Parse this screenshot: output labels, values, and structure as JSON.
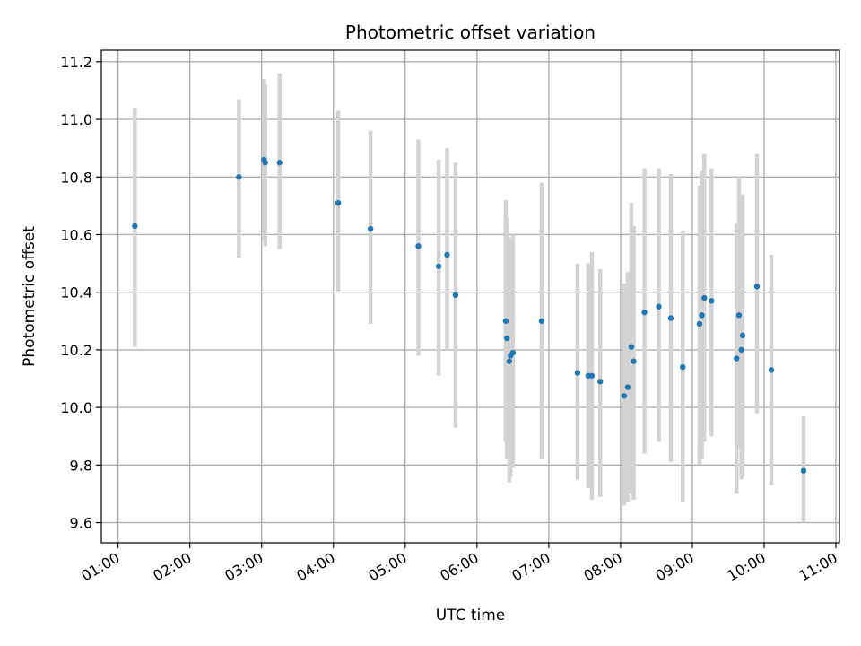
{
  "chart_data": {
    "type": "scatter",
    "title": "Photometric offset variation",
    "xlabel": "UTC time",
    "ylabel": "Photometric offset",
    "grid": true,
    "xlim": [
      "00:46",
      "11:03"
    ],
    "ylim": [
      9.53,
      11.24
    ],
    "x_ticks": [
      "01:00",
      "02:00",
      "03:00",
      "04:00",
      "05:00",
      "06:00",
      "07:00",
      "08:00",
      "09:00",
      "10:00",
      "11:00"
    ],
    "y_ticks": [
      9.6,
      9.8,
      10.0,
      10.2,
      10.4,
      10.6,
      10.8,
      11.0,
      11.2
    ],
    "y_tick_labels": [
      "9.6",
      "9.8",
      "10.0",
      "10.2",
      "10.4",
      "10.6",
      "10.8",
      "11.0",
      "11.2"
    ],
    "colors": {
      "point": "#1f77b4",
      "errorbar": "#d3d3d3",
      "grid": "#b0b0b0"
    },
    "points": [
      {
        "x": "01:14",
        "y": 10.63,
        "lo": 10.21,
        "hi": 11.04
      },
      {
        "x": "02:41",
        "y": 10.8,
        "lo": 10.52,
        "hi": 11.07
      },
      {
        "x": "03:02",
        "y": 10.86,
        "lo": 10.58,
        "hi": 11.14
      },
      {
        "x": "03:03",
        "y": 10.85,
        "lo": 10.56,
        "hi": 11.12
      },
      {
        "x": "03:15",
        "y": 10.85,
        "lo": 10.55,
        "hi": 11.16
      },
      {
        "x": "04:04",
        "y": 10.71,
        "lo": 10.4,
        "hi": 11.03
      },
      {
        "x": "04:31",
        "y": 10.62,
        "lo": 10.29,
        "hi": 10.96
      },
      {
        "x": "05:11",
        "y": 10.56,
        "lo": 10.18,
        "hi": 10.93
      },
      {
        "x": "05:28",
        "y": 10.49,
        "lo": 10.11,
        "hi": 10.86
      },
      {
        "x": "05:35",
        "y": 10.53,
        "lo": 10.2,
        "hi": 10.9
      },
      {
        "x": "05:42",
        "y": 10.39,
        "lo": 9.93,
        "hi": 10.85
      },
      {
        "x": "06:24",
        "y": 10.3,
        "lo": 9.88,
        "hi": 10.72
      },
      {
        "x": "06:25",
        "y": 10.24,
        "lo": 9.82,
        "hi": 10.66
      },
      {
        "x": "06:27",
        "y": 10.16,
        "lo": 9.74,
        "hi": 10.58
      },
      {
        "x": "06:28",
        "y": 10.18,
        "lo": 9.76,
        "hi": 10.59
      },
      {
        "x": "06:30",
        "y": 10.19,
        "lo": 9.79,
        "hi": 10.6
      },
      {
        "x": "06:54",
        "y": 10.3,
        "lo": 9.82,
        "hi": 10.78
      },
      {
        "x": "07:24",
        "y": 10.12,
        "lo": 9.75,
        "hi": 10.5
      },
      {
        "x": "07:33",
        "y": 10.11,
        "lo": 9.72,
        "hi": 10.5
      },
      {
        "x": "07:36",
        "y": 10.11,
        "lo": 9.68,
        "hi": 10.54
      },
      {
        "x": "07:43",
        "y": 10.09,
        "lo": 9.69,
        "hi": 10.48
      },
      {
        "x": "08:03",
        "y": 10.04,
        "lo": 9.66,
        "hi": 10.43
      },
      {
        "x": "08:06",
        "y": 10.07,
        "lo": 9.67,
        "hi": 10.47
      },
      {
        "x": "08:09",
        "y": 10.21,
        "lo": 9.7,
        "hi": 10.71
      },
      {
        "x": "08:11",
        "y": 10.16,
        "lo": 9.68,
        "hi": 10.63
      },
      {
        "x": "08:20",
        "y": 10.33,
        "lo": 9.84,
        "hi": 10.83
      },
      {
        "x": "08:32",
        "y": 10.35,
        "lo": 9.88,
        "hi": 10.83
      },
      {
        "x": "08:42",
        "y": 10.31,
        "lo": 9.81,
        "hi": 10.81
      },
      {
        "x": "08:52",
        "y": 10.14,
        "lo": 9.67,
        "hi": 10.61
      },
      {
        "x": "09:06",
        "y": 10.29,
        "lo": 9.8,
        "hi": 10.77
      },
      {
        "x": "09:08",
        "y": 10.32,
        "lo": 9.82,
        "hi": 10.82
      },
      {
        "x": "09:10",
        "y": 10.38,
        "lo": 9.88,
        "hi": 10.88
      },
      {
        "x": "09:16",
        "y": 10.37,
        "lo": 9.9,
        "hi": 10.83
      },
      {
        "x": "09:37",
        "y": 10.17,
        "lo": 9.7,
        "hi": 10.64
      },
      {
        "x": "09:39",
        "y": 10.32,
        "lo": 9.86,
        "hi": 10.8
      },
      {
        "x": "09:41",
        "y": 10.2,
        "lo": 9.75,
        "hi": 10.66
      },
      {
        "x": "09:42",
        "y": 10.25,
        "lo": 9.76,
        "hi": 10.74
      },
      {
        "x": "09:54",
        "y": 10.42,
        "lo": 9.98,
        "hi": 10.88
      },
      {
        "x": "10:06",
        "y": 10.13,
        "lo": 9.73,
        "hi": 10.53
      },
      {
        "x": "10:33",
        "y": 9.78,
        "lo": 9.6,
        "hi": 9.97
      }
    ]
  }
}
